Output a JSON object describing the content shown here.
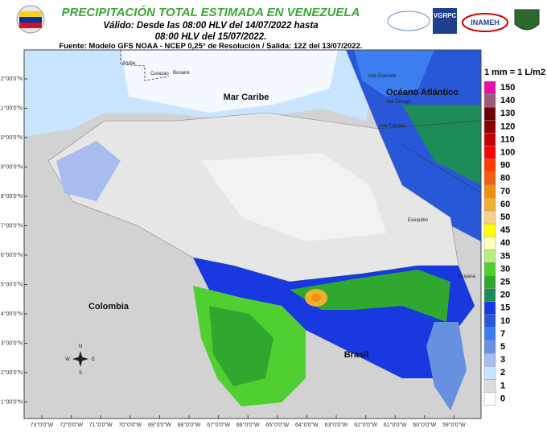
{
  "header": {
    "title": "PRECIPITACIÓN TOTAL ESTIMADA EN VENEZUELA",
    "subtitle_1": "Válido: Desde las 08:00 HLV del 14/07/2022 hasta",
    "subtitle_2": "08:00 HLV del 15/07/2022.",
    "source": "Fuente: Modelo GFS NOAA - NCEP 0,25° de Resolución / Salida: 12Z del 13/07/2022.",
    "logos": [
      "VGRPC",
      "INAMEH"
    ]
  },
  "map": {
    "latitude_labels": [
      "12°00'0\"N",
      "11°00'0\"N",
      "10°00'0\"N",
      "9°00'0\"N",
      "8°00'0\"N",
      "7°00'0\"N",
      "6°00'0\"N",
      "5°00'0\"N",
      "4°00'0\"N",
      "3°00'0\"N",
      "2°00'0\"N",
      "1°00'0\"N"
    ],
    "longitude_labels": [
      "73°0'0\"W",
      "72°0'0\"W",
      "71°0'0\"W",
      "70°0'0\"W",
      "69°0'0\"W",
      "68°0'0\"W",
      "67°0'0\"W",
      "66°0'0\"W",
      "65°0'0\"W",
      "64°0'0\"W",
      "63°0'0\"W",
      "62°0'0\"W",
      "61°0'0\"W",
      "60°0'0\"W",
      "59°0'0\"W"
    ],
    "places": {
      "aruba": "Aruba",
      "curazao": "Curazao",
      "bonaire": "Bonaire",
      "caribe": "Mar Caribe",
      "atlantico": "Océano Atlántico",
      "tobago": "Isla Tobago",
      "trinidad": "Isla Trinidad",
      "granada": "Isla Granada",
      "esequibo": "Esequibo",
      "guyana": "Guyana",
      "colombia": "Colombia",
      "brasil": "Brasil",
      "compass_n": "N",
      "compass_s": "S",
      "compass_e": "E",
      "compass_w": "W"
    }
  },
  "legend": {
    "title": "1 mm = 1 L/m2",
    "items": [
      {
        "label": "150",
        "color": "#e010a8"
      },
      {
        "label": "140",
        "color": "#a05a78"
      },
      {
        "label": "130",
        "color": "#6a0000"
      },
      {
        "label": "120",
        "color": "#8c0000"
      },
      {
        "label": "110",
        "color": "#c00000"
      },
      {
        "label": "100",
        "color": "#ff0000"
      },
      {
        "label": "90",
        "color": "#ff3c00"
      },
      {
        "label": "80",
        "color": "#f06010"
      },
      {
        "label": "70",
        "color": "#f09010"
      },
      {
        "label": "60",
        "color": "#f0b030"
      },
      {
        "label": "50",
        "color": "#f8d088"
      },
      {
        "label": "45",
        "color": "#ffff00"
      },
      {
        "label": "40",
        "color": "#ffffc0"
      },
      {
        "label": "35",
        "color": "#b8f080"
      },
      {
        "label": "30",
        "color": "#50d030"
      },
      {
        "label": "25",
        "color": "#30a830"
      },
      {
        "label": "20",
        "color": "#1e8c58"
      },
      {
        "label": "15",
        "color": "#1838e0"
      },
      {
        "label": "10",
        "color": "#2858d8"
      },
      {
        "label": "7",
        "color": "#3c7ef0"
      },
      {
        "label": "5",
        "color": "#6890e0"
      },
      {
        "label": "3",
        "color": "#a8bcf0"
      },
      {
        "label": "2",
        "color": "#c8e4ff"
      },
      {
        "label": "1",
        "color": "#dcdcdc"
      },
      {
        "label": "0",
        "color": "#ffffff"
      }
    ]
  }
}
